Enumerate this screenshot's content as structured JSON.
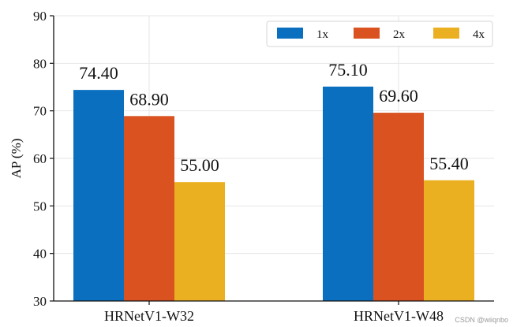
{
  "chart_data": {
    "type": "bar",
    "categories": [
      "HRNetV1-W32",
      "HRNetV1-W48"
    ],
    "series": [
      {
        "name": "1x",
        "values": [
          74.4,
          75.1
        ],
        "color": "#0b6fbf"
      },
      {
        "name": "2x",
        "values": [
          68.9,
          69.6
        ],
        "color": "#d95220"
      },
      {
        "name": "4x",
        "values": [
          55.0,
          55.4
        ],
        "color": "#ebb022"
      }
    ],
    "data_labels": [
      [
        "74.40",
        "75.10"
      ],
      [
        "68.90",
        "69.60"
      ],
      [
        "55.00",
        "55.40"
      ]
    ],
    "title": "",
    "xlabel": "",
    "ylabel": "AP (%)",
    "ylim": [
      30,
      90
    ],
    "yticks": [
      30,
      40,
      50,
      60,
      70,
      80,
      90
    ],
    "grid": true,
    "legend_position": "top-right",
    "legend_columns": 3
  },
  "watermark": "CSDN @wiiqnbo"
}
